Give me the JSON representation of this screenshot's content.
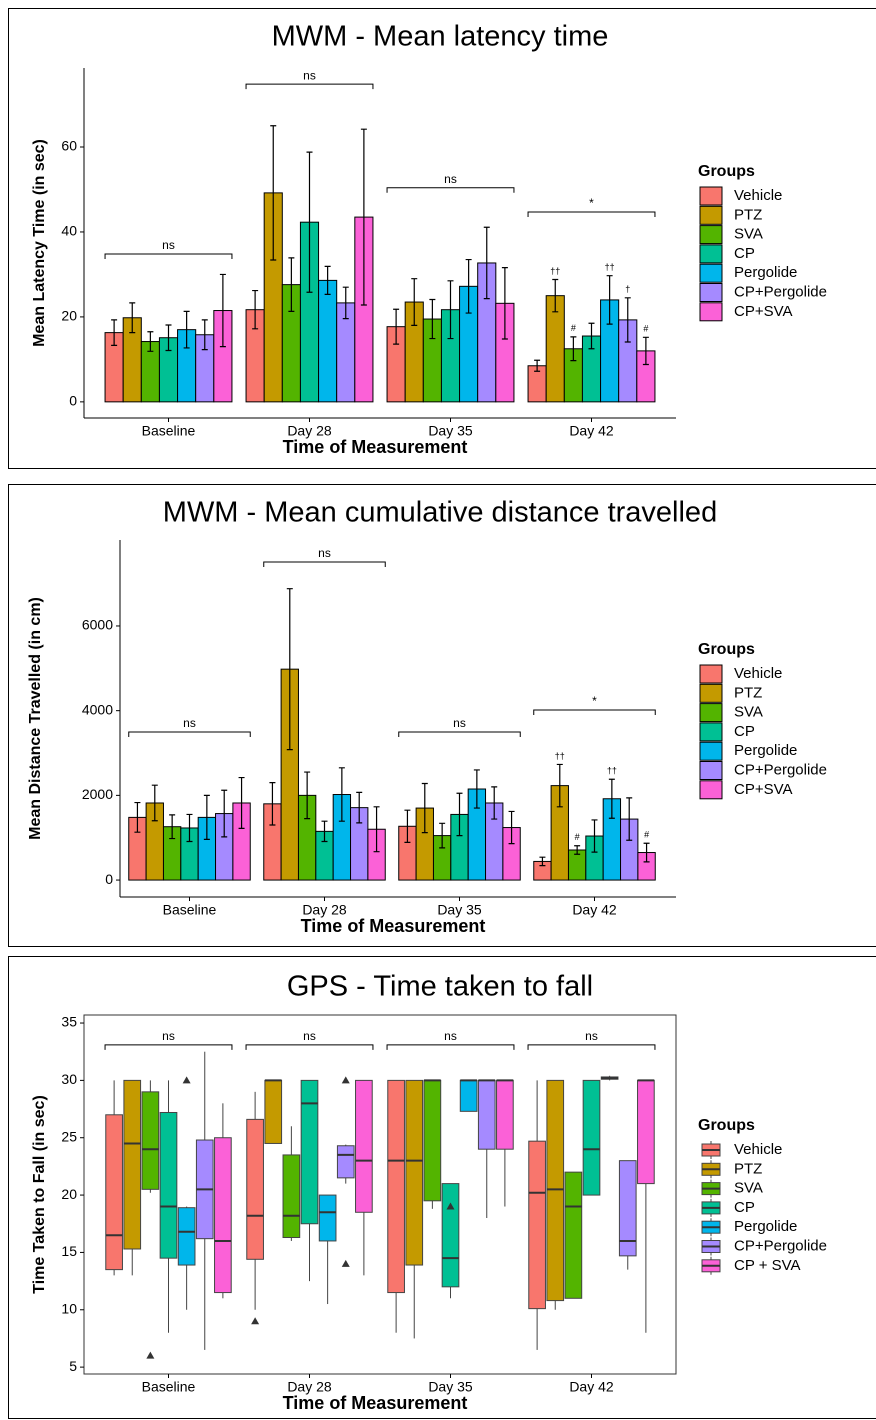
{
  "chart_data": [
    {
      "type": "bar",
      "title": "MWM - Mean latency time",
      "x_label": "Time of Measurement",
      "y_label": "Mean Latency Time (in sec)",
      "legend_title": "Groups",
      "categories": [
        "Baseline",
        "Day 28",
        "Day 35",
        "Day 42"
      ],
      "ylim": [
        -3.8,
        78.6
      ],
      "yticks": [
        0,
        20,
        40,
        60
      ],
      "bracket_labels": [
        "ns",
        "ns",
        "ns",
        "*"
      ],
      "bracket_levels": [
        34.8,
        74.8,
        50.4,
        44.7
      ],
      "series": [
        {
          "name": "Vehicle",
          "color": "#F8766D",
          "values": [
            16.3,
            21.7,
            17.7,
            8.5
          ],
          "errors": [
            3,
            4.5,
            4.1,
            1.3
          ],
          "marks": [
            null,
            null,
            null,
            null
          ]
        },
        {
          "name": "PTZ",
          "color": "#C49A00",
          "values": [
            19.8,
            49.2,
            23.5,
            25
          ],
          "errors": [
            3.5,
            15.8,
            5.5,
            3.8
          ],
          "marks": [
            null,
            null,
            null,
            "††"
          ]
        },
        {
          "name": "SVA",
          "color": "#53B400",
          "values": [
            14.2,
            27.6,
            19.5,
            12.5
          ],
          "errors": [
            2.3,
            6.3,
            4.6,
            2.8
          ],
          "marks": [
            null,
            null,
            null,
            "#"
          ]
        },
        {
          "name": "CP",
          "color": "#00C094",
          "values": [
            15.1,
            42.3,
            21.7,
            15.5
          ],
          "errors": [
            3,
            16.5,
            6.8,
            3
          ],
          "marks": [
            null,
            null,
            null,
            null
          ]
        },
        {
          "name": "Pergolide",
          "color": "#00B6EB",
          "values": [
            17,
            28.6,
            27.2,
            24
          ],
          "errors": [
            4.3,
            3.3,
            6.3,
            5.7
          ],
          "marks": [
            null,
            null,
            null,
            "††"
          ]
        },
        {
          "name": "CP+Pergolide",
          "color": "#A58AFF",
          "values": [
            15.8,
            23.3,
            32.7,
            19.3
          ],
          "errors": [
            3.5,
            3.7,
            8.4,
            5.2
          ],
          "marks": [
            null,
            null,
            null,
            "†"
          ]
        },
        {
          "name": "CP+SVA",
          "color": "#FB61D7",
          "values": [
            21.5,
            43.5,
            23.2,
            12
          ],
          "errors": [
            8.5,
            20.7,
            8.4,
            3.2
          ],
          "marks": [
            null,
            null,
            null,
            "#"
          ]
        }
      ]
    },
    {
      "type": "bar",
      "title": "MWM - Mean cumulative distance travelled",
      "x_label": "Time of Measurement",
      "y_label": "Mean Distance Travelled (in cm)",
      "legend_title": "Groups",
      "categories": [
        "Baseline",
        "Day 28",
        "Day 35",
        "Day 42"
      ],
      "ylim": [
        -400,
        8030
      ],
      "yticks": [
        0,
        2000,
        4000,
        6000
      ],
      "bracket_labels": [
        "ns",
        "ns",
        "ns",
        "*"
      ],
      "bracket_levels": [
        3496,
        7511,
        3496,
        4016
      ],
      "series": [
        {
          "name": "Vehicle",
          "color": "#F8766D",
          "values": [
            1480,
            1800,
            1270,
            440
          ],
          "errors": [
            350,
            500,
            380,
            100
          ],
          "marks": [
            null,
            null,
            null,
            null
          ]
        },
        {
          "name": "PTZ",
          "color": "#C49A00",
          "values": [
            1820,
            4980,
            1700,
            2230
          ],
          "errors": [
            420,
            1900,
            580,
            500
          ],
          "marks": [
            null,
            null,
            null,
            "††"
          ]
        },
        {
          "name": "SVA",
          "color": "#53B400",
          "values": [
            1260,
            2000,
            1050,
            710
          ],
          "errors": [
            280,
            550,
            290,
            100
          ],
          "marks": [
            null,
            null,
            null,
            "#"
          ]
        },
        {
          "name": "CP",
          "color": "#00C094",
          "values": [
            1230,
            1150,
            1550,
            1040
          ],
          "errors": [
            320,
            240,
            500,
            380
          ],
          "marks": [
            null,
            null,
            null,
            null
          ]
        },
        {
          "name": "Pergolide",
          "color": "#00B6EB",
          "values": [
            1480,
            2020,
            2150,
            1920
          ],
          "errors": [
            520,
            630,
            450,
            460
          ],
          "marks": [
            null,
            null,
            null,
            "††"
          ]
        },
        {
          "name": "CP+Pergolide",
          "color": "#A58AFF",
          "values": [
            1570,
            1710,
            1820,
            1440
          ],
          "errors": [
            550,
            360,
            380,
            500
          ],
          "marks": [
            null,
            null,
            null,
            null
          ]
        },
        {
          "name": "CP+SVA",
          "color": "#FB61D7",
          "values": [
            1820,
            1200,
            1240,
            650
          ],
          "errors": [
            600,
            530,
            380,
            220
          ],
          "marks": [
            null,
            null,
            null,
            "#"
          ]
        }
      ]
    },
    {
      "type": "box",
      "title": "GPS - Time taken to fall",
      "x_label": "Time of Measurement",
      "y_label": "Time Taken to Fall (in sec)",
      "legend_title": "Groups",
      "categories": [
        "Baseline",
        "Day 28",
        "Day 35",
        "Day 42"
      ],
      "ylim": [
        4.4,
        35.7
      ],
      "yticks": [
        5,
        10,
        15,
        20,
        25,
        30,
        35
      ],
      "bracket_labels": [
        "ns",
        "ns",
        "ns",
        "ns"
      ],
      "bracket_levels": [
        33.1,
        33.1,
        33.1,
        33.1
      ],
      "series": [
        {
          "name": "Vehicle",
          "color": "#F8766D",
          "boxes": [
            {
              "min": 13,
              "q1": 13.5,
              "median": 16.5,
              "q3": 27,
              "max": 30,
              "outliers": []
            },
            {
              "min": 10,
              "q1": 14.4,
              "median": 18.2,
              "q3": 26.6,
              "max": 29,
              "outliers": [
                9
              ]
            },
            {
              "min": 8,
              "q1": 11.5,
              "median": 23,
              "q3": 30,
              "max": 30,
              "outliers": []
            },
            {
              "min": 6.5,
              "q1": 10.1,
              "median": 20.2,
              "q3": 24.7,
              "max": 30,
              "outliers": []
            }
          ]
        },
        {
          "name": "PTZ",
          "color": "#C49A00",
          "boxes": [
            {
              "min": 13,
              "q1": 15.3,
              "median": 24.5,
              "q3": 30,
              "max": 30,
              "outliers": []
            },
            {
              "min": 24.5,
              "q1": 24.5,
              "median": 30,
              "q3": 30,
              "max": 30,
              "outliers": []
            },
            {
              "min": 7.5,
              "q1": 13.9,
              "median": 23,
              "q3": 30,
              "max": 30,
              "outliers": []
            },
            {
              "min": 10,
              "q1": 10.8,
              "median": 20.5,
              "q3": 30,
              "max": 30,
              "outliers": []
            }
          ]
        },
        {
          "name": "SVA",
          "color": "#53B400",
          "boxes": [
            {
              "min": 20.2,
              "q1": 20.5,
              "median": 24,
              "q3": 29,
              "max": 30,
              "outliers": [
                6
              ]
            },
            {
              "min": 16,
              "q1": 16.3,
              "median": 18.2,
              "q3": 23.5,
              "max": 26,
              "outliers": []
            },
            {
              "min": 18.8,
              "q1": 19.5,
              "median": 30,
              "q3": 30,
              "max": 30,
              "outliers": []
            },
            {
              "min": 11,
              "q1": 11,
              "median": 19,
              "q3": 22,
              "max": 22,
              "outliers": []
            }
          ]
        },
        {
          "name": "CP",
          "color": "#00C094",
          "boxes": [
            {
              "min": 8,
              "q1": 14.5,
              "median": 19,
              "q3": 27.2,
              "max": 30,
              "outliers": []
            },
            {
              "min": 12.5,
              "q1": 17.5,
              "median": 28,
              "q3": 30,
              "max": 30,
              "outliers": []
            },
            {
              "min": 11,
              "q1": 12,
              "median": 14.5,
              "q3": 21,
              "max": 21,
              "outliers": [
                19
              ]
            },
            {
              "min": 20,
              "q1": 20,
              "median": 24,
              "q3": 30,
              "max": 30,
              "outliers": []
            }
          ]
        },
        {
          "name": "Pergolide",
          "color": "#00B6EB",
          "boxes": [
            {
              "min": 10,
              "q1": 13.9,
              "median": 16.8,
              "q3": 18.9,
              "max": 19,
              "outliers": [
                30
              ]
            },
            {
              "min": 10.5,
              "q1": 16,
              "median": 18.5,
              "q3": 20,
              "max": 20,
              "outliers": []
            },
            {
              "min": 27.3,
              "q1": 27.3,
              "median": 30,
              "q3": 30,
              "max": 30,
              "outliers": []
            },
            {
              "min": 30,
              "q1": 30.1,
              "median": 30.2,
              "q3": 30.3,
              "max": 30.4,
              "outliers": []
            }
          ]
        },
        {
          "name": "CP+Pergolide",
          "color": "#A58AFF",
          "boxes": [
            {
              "min": 6.5,
              "q1": 16.2,
              "median": 20.5,
              "q3": 24.8,
              "max": 32.5,
              "outliers": []
            },
            {
              "min": 21,
              "q1": 21.5,
              "median": 23.5,
              "q3": 24.3,
              "max": 24.4,
              "outliers": [
                30,
                14
              ]
            },
            {
              "min": 18,
              "q1": 24,
              "median": 30,
              "q3": 30,
              "max": 30,
              "outliers": []
            },
            {
              "min": 13.5,
              "q1": 14.7,
              "median": 16,
              "q3": 23,
              "max": 23,
              "outliers": []
            }
          ]
        },
        {
          "name": "CP + SVA",
          "color": "#FB61D7",
          "boxes": [
            {
              "min": 11,
              "q1": 11.5,
              "median": 16,
              "q3": 25,
              "max": 28,
              "outliers": []
            },
            {
              "min": 13,
              "q1": 18.5,
              "median": 23,
              "q3": 30,
              "max": 30,
              "outliers": []
            },
            {
              "min": 19,
              "q1": 24,
              "median": 30,
              "q3": 30,
              "max": 30,
              "outliers": []
            },
            {
              "min": 8,
              "q1": 21,
              "median": 30,
              "q3": 30,
              "max": 30,
              "outliers": []
            }
          ]
        }
      ]
    }
  ]
}
